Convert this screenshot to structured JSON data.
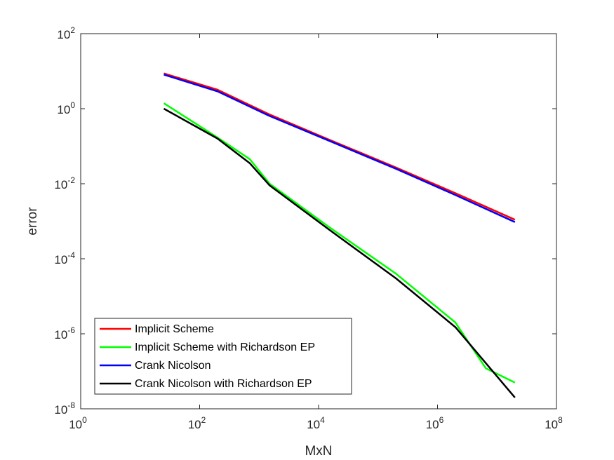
{
  "chart_data": {
    "type": "line",
    "title": "",
    "xlabel": "MxN",
    "ylabel": "error",
    "xscale": "log",
    "yscale": "log",
    "xlim": [
      1,
      100000000
    ],
    "ylim": [
      1e-08,
      100
    ],
    "grid": false,
    "legend_location": "bottom-left",
    "x_ticks": [
      {
        "base": "10",
        "exp": "0"
      },
      {
        "base": "10",
        "exp": "2"
      },
      {
        "base": "10",
        "exp": "4"
      },
      {
        "base": "10",
        "exp": "6"
      },
      {
        "base": "10",
        "exp": "8"
      }
    ],
    "y_ticks": [
      {
        "base": "10",
        "exp": "-8"
      },
      {
        "base": "10",
        "exp": "-6"
      },
      {
        "base": "10",
        "exp": "-4"
      },
      {
        "base": "10",
        "exp": "-2"
      },
      {
        "base": "10",
        "exp": "0"
      },
      {
        "base": "10",
        "exp": "2"
      }
    ],
    "series": [
      {
        "name": "Implicit Scheme",
        "color": "#ff0000",
        "points": [
          [
            25,
            8.7
          ],
          [
            200,
            3.2
          ],
          [
            1500,
            0.7
          ],
          [
            15000,
            0.15
          ],
          [
            200000,
            0.027
          ],
          [
            2000000,
            0.0056
          ],
          [
            20000000,
            0.0011
          ]
        ]
      },
      {
        "name": "Implicit Scheme with Richardson EP",
        "color": "#00ff00",
        "points": [
          [
            25,
            1.4
          ],
          [
            200,
            0.17
          ],
          [
            700,
            0.045
          ],
          [
            1500,
            0.01
          ],
          [
            15000,
            0.0007
          ],
          [
            200000,
            4e-05
          ],
          [
            2000000,
            2e-06
          ],
          [
            6500000,
            1.2e-07
          ],
          [
            20000000,
            5e-08
          ]
        ]
      },
      {
        "name": "Crank Nicolson",
        "color": "#0000ff",
        "points": [
          [
            25,
            8.1
          ],
          [
            200,
            2.9
          ],
          [
            1500,
            0.64
          ],
          [
            15000,
            0.14
          ],
          [
            200000,
            0.025
          ],
          [
            2000000,
            0.005
          ],
          [
            20000000,
            0.00095
          ]
        ]
      },
      {
        "name": "Crank Nicolson with Richardson EP",
        "color": "#000000",
        "points": [
          [
            25,
            1.0
          ],
          [
            200,
            0.16
          ],
          [
            700,
            0.035
          ],
          [
            1500,
            0.009
          ],
          [
            15000,
            0.0006
          ],
          [
            200000,
            3e-05
          ],
          [
            2000000,
            1.5e-06
          ],
          [
            20000000,
            2e-08
          ]
        ]
      }
    ]
  }
}
